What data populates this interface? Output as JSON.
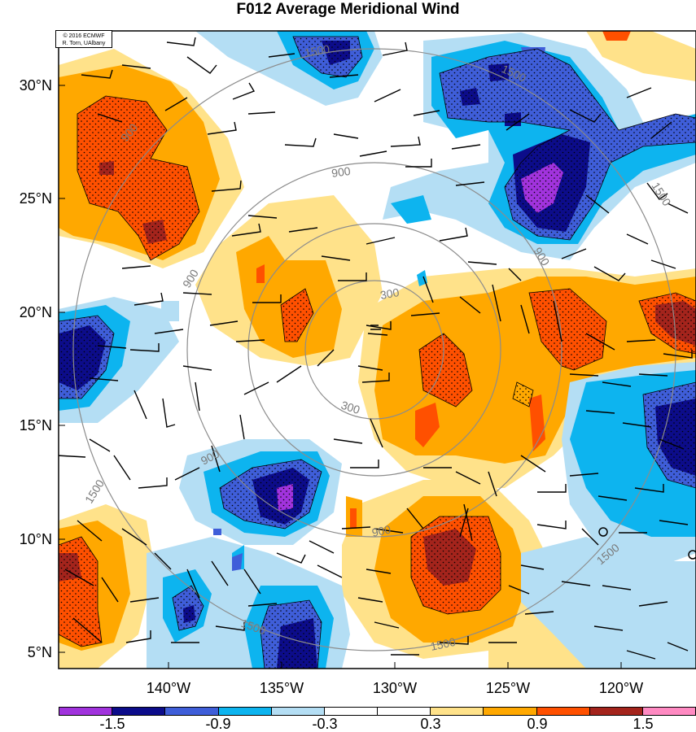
{
  "title": "F012 Average Meridional Wind",
  "copyright": {
    "line1": "© 2016 ECMWF",
    "line2": "R. Torn, UAlbany"
  },
  "latitude_labels": [
    "30°N",
    "25°N",
    "20°N",
    "15°N",
    "10°N",
    "5°N"
  ],
  "longitude_labels": [
    "140°W",
    "135°W",
    "130°W",
    "125°W",
    "120°W"
  ],
  "contour_labels": [
    "1500",
    "1500",
    "900",
    "900",
    "900",
    "300",
    "300",
    "900",
    "900",
    "1500",
    "1500",
    "1500",
    "1500",
    "900",
    "1500"
  ],
  "colorbar": {
    "colors": [
      "#a133dd",
      "#0c0c8a",
      "#3f5ed9",
      "#0db4ef",
      "#b4def4",
      "#ffffff",
      "#ffffff",
      "#ffe28a",
      "#ffa800",
      "#ff5000",
      "#a4241c",
      "#ff8ac2"
    ],
    "labels": [
      "-1.5",
      "-0.9",
      "-0.3",
      "0.3",
      "0.9",
      "1.5"
    ]
  }
}
